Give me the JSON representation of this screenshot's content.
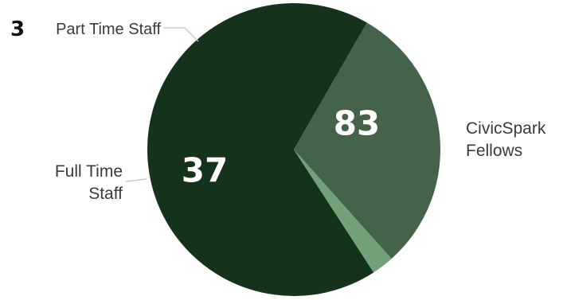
{
  "chart_data": {
    "type": "pie",
    "slices": [
      {
        "label": "CivicSpark Fellows",
        "label_lines": [
          "CivicSpark",
          "Fellows"
        ],
        "value": 83,
        "color": "#15331b"
      },
      {
        "label": "Full Time Staff",
        "label_lines": [
          "Full Time",
          "Staff"
        ],
        "value": 37,
        "color": "#456348"
      },
      {
        "label": "Part Time Staff",
        "label_lines": [
          "Part Time Staff"
        ],
        "value": 3,
        "color": "#74a079"
      }
    ],
    "value_labels": [
      "83",
      "37",
      "3"
    ],
    "leader_line_color": "#c9c9c9",
    "background_color": "#ffffff",
    "legend": "none"
  }
}
